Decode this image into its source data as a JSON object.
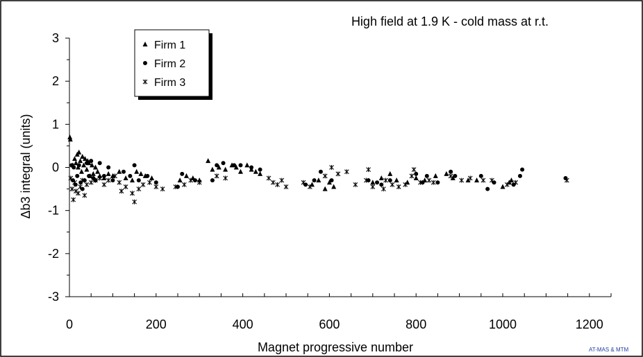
{
  "chart_data": {
    "type": "scatter",
    "title": "High field at 1.9 K - cold mass at r.t.",
    "xlabel": "Magnet progressive number",
    "ylabel": "Δb3 integral (units)",
    "xlim": [
      0,
      1250
    ],
    "ylim": [
      -3,
      3
    ],
    "xticks": [
      0,
      200,
      400,
      600,
      800,
      1000,
      1200
    ],
    "yticks": [
      -3,
      -2,
      -1,
      0,
      1,
      2,
      3
    ],
    "xtick_labels": [
      "0",
      "200",
      "400",
      "600",
      "800",
      "1000",
      "1200"
    ],
    "ytick_labels": [
      "-3",
      "-2",
      "-1",
      "0",
      "1",
      "2",
      "3"
    ],
    "grid": false,
    "legend_position": "top-left",
    "credit": "AT-MAS & MTM",
    "series": [
      {
        "name": "Firm 1",
        "marker": "triangle",
        "points": [
          [
            1,
            0.7
          ],
          [
            2,
            0.65
          ],
          [
            8,
            0.05
          ],
          [
            12,
            0.2
          ],
          [
            15,
            0.1
          ],
          [
            18,
            0.3
          ],
          [
            20,
            0.0
          ],
          [
            22,
            0.35
          ],
          [
            25,
            0.15
          ],
          [
            28,
            -0.1
          ],
          [
            30,
            0.25
          ],
          [
            33,
            0.05
          ],
          [
            36,
            0.2
          ],
          [
            40,
            -0.05
          ],
          [
            42,
            0.15
          ],
          [
            45,
            0.1
          ],
          [
            48,
            -0.2
          ],
          [
            52,
            0.05
          ],
          [
            55,
            -0.15
          ],
          [
            60,
            0.0
          ],
          [
            65,
            -0.1
          ],
          [
            70,
            -0.2
          ],
          [
            80,
            -0.25
          ],
          [
            90,
            -0.15
          ],
          [
            100,
            -0.2
          ],
          [
            115,
            -0.1
          ],
          [
            130,
            -0.25
          ],
          [
            145,
            -0.3
          ],
          [
            155,
            -0.1
          ],
          [
            165,
            -0.15
          ],
          [
            175,
            -0.2
          ],
          [
            190,
            -0.25
          ],
          [
            255,
            -0.3
          ],
          [
            270,
            -0.2
          ],
          [
            285,
            -0.25
          ],
          [
            300,
            -0.3
          ],
          [
            320,
            0.15
          ],
          [
            330,
            -0.05
          ],
          [
            345,
            0.0
          ],
          [
            360,
            -0.05
          ],
          [
            375,
            0.05
          ],
          [
            385,
            0.0
          ],
          [
            395,
            -0.1
          ],
          [
            410,
            0.05
          ],
          [
            420,
            -0.05
          ],
          [
            430,
            -0.1
          ],
          [
            440,
            -0.15
          ],
          [
            560,
            -0.4
          ],
          [
            575,
            -0.3
          ],
          [
            590,
            -0.5
          ],
          [
            600,
            -0.35
          ],
          [
            610,
            -0.45
          ],
          [
            700,
            -0.35
          ],
          [
            720,
            -0.25
          ],
          [
            740,
            -0.15
          ],
          [
            755,
            -0.3
          ],
          [
            780,
            -0.35
          ],
          [
            800,
            -0.25
          ],
          [
            820,
            -0.3
          ],
          [
            845,
            -0.2
          ],
          [
            870,
            -0.15
          ],
          [
            885,
            -0.25
          ],
          [
            920,
            -0.3
          ],
          [
            940,
            -0.3
          ],
          [
            1000,
            -0.45
          ],
          [
            1015,
            -0.35
          ],
          [
            1020,
            -0.3
          ]
        ]
      },
      {
        "name": "Firm 2",
        "marker": "circle",
        "points": [
          [
            5,
            0.05
          ],
          [
            8,
            -0.3
          ],
          [
            10,
            0.0
          ],
          [
            14,
            -0.4
          ],
          [
            18,
            -0.2
          ],
          [
            22,
            0.05
          ],
          [
            26,
            -0.35
          ],
          [
            30,
            -0.5
          ],
          [
            35,
            -0.3
          ],
          [
            40,
            0.1
          ],
          [
            45,
            -0.2
          ],
          [
            50,
            0.15
          ],
          [
            55,
            -0.25
          ],
          [
            60,
            -0.3
          ],
          [
            70,
            0.1
          ],
          [
            80,
            -0.2
          ],
          [
            90,
            0.0
          ],
          [
            100,
            -0.3
          ],
          [
            125,
            -0.1
          ],
          [
            140,
            -0.2
          ],
          [
            150,
            0.05
          ],
          [
            160,
            -0.3
          ],
          [
            180,
            -0.2
          ],
          [
            200,
            -0.35
          ],
          [
            250,
            -0.45
          ],
          [
            260,
            -0.15
          ],
          [
            290,
            -0.3
          ],
          [
            330,
            -0.3
          ],
          [
            340,
            0.05
          ],
          [
            355,
            0.1
          ],
          [
            380,
            0.05
          ],
          [
            395,
            0.05
          ],
          [
            420,
            0.0
          ],
          [
            440,
            -0.05
          ],
          [
            545,
            -0.4
          ],
          [
            565,
            -0.3
          ],
          [
            580,
            -0.1
          ],
          [
            605,
            -0.3
          ],
          [
            690,
            -0.3
          ],
          [
            710,
            -0.35
          ],
          [
            720,
            -0.4
          ],
          [
            740,
            -0.3
          ],
          [
            800,
            -0.15
          ],
          [
            815,
            -0.35
          ],
          [
            825,
            -0.2
          ],
          [
            850,
            -0.35
          ],
          [
            880,
            -0.1
          ],
          [
            890,
            -0.2
          ],
          [
            950,
            -0.2
          ],
          [
            965,
            -0.5
          ],
          [
            980,
            -0.35
          ],
          [
            1025,
            -0.4
          ],
          [
            1040,
            -0.2
          ],
          [
            1045,
            -0.05
          ],
          [
            1145,
            -0.25
          ]
        ]
      },
      {
        "name": "Firm 3",
        "marker": "star",
        "points": [
          [
            3,
            -0.25
          ],
          [
            6,
            -0.5
          ],
          [
            9,
            -0.75
          ],
          [
            12,
            -0.35
          ],
          [
            15,
            -0.55
          ],
          [
            20,
            -0.6
          ],
          [
            25,
            -0.45
          ],
          [
            30,
            -0.3
          ],
          [
            35,
            -0.65
          ],
          [
            40,
            -0.4
          ],
          [
            50,
            -0.35
          ],
          [
            60,
            -0.3
          ],
          [
            70,
            -0.25
          ],
          [
            80,
            -0.4
          ],
          [
            90,
            -0.3
          ],
          [
            105,
            -0.2
          ],
          [
            115,
            -0.35
          ],
          [
            120,
            -0.55
          ],
          [
            130,
            -0.45
          ],
          [
            145,
            -0.6
          ],
          [
            150,
            -0.8
          ],
          [
            160,
            -0.5
          ],
          [
            170,
            -0.4
          ],
          [
            185,
            -0.35
          ],
          [
            200,
            -0.45
          ],
          [
            215,
            -0.5
          ],
          [
            245,
            -0.45
          ],
          [
            265,
            -0.4
          ],
          [
            280,
            -0.3
          ],
          [
            300,
            -0.35
          ],
          [
            340,
            -0.2
          ],
          [
            360,
            -0.25
          ],
          [
            460,
            -0.25
          ],
          [
            470,
            -0.35
          ],
          [
            480,
            -0.4
          ],
          [
            490,
            -0.3
          ],
          [
            500,
            -0.45
          ],
          [
            540,
            -0.35
          ],
          [
            555,
            -0.45
          ],
          [
            590,
            -0.2
          ],
          [
            605,
            0.0
          ],
          [
            620,
            -0.15
          ],
          [
            640,
            -0.1
          ],
          [
            660,
            -0.4
          ],
          [
            685,
            -0.3
          ],
          [
            690,
            -0.05
          ],
          [
            700,
            -0.45
          ],
          [
            725,
            -0.5
          ],
          [
            730,
            -0.3
          ],
          [
            745,
            -0.4
          ],
          [
            760,
            -0.45
          ],
          [
            775,
            -0.4
          ],
          [
            790,
            -0.2
          ],
          [
            795,
            -0.05
          ],
          [
            810,
            -0.35
          ],
          [
            830,
            -0.3
          ],
          [
            840,
            -0.35
          ],
          [
            880,
            -0.2
          ],
          [
            905,
            -0.3
          ],
          [
            925,
            -0.25
          ],
          [
            955,
            -0.3
          ],
          [
            975,
            -0.3
          ],
          [
            1010,
            -0.4
          ],
          [
            1030,
            -0.35
          ],
          [
            1148,
            -0.3
          ]
        ]
      }
    ]
  }
}
